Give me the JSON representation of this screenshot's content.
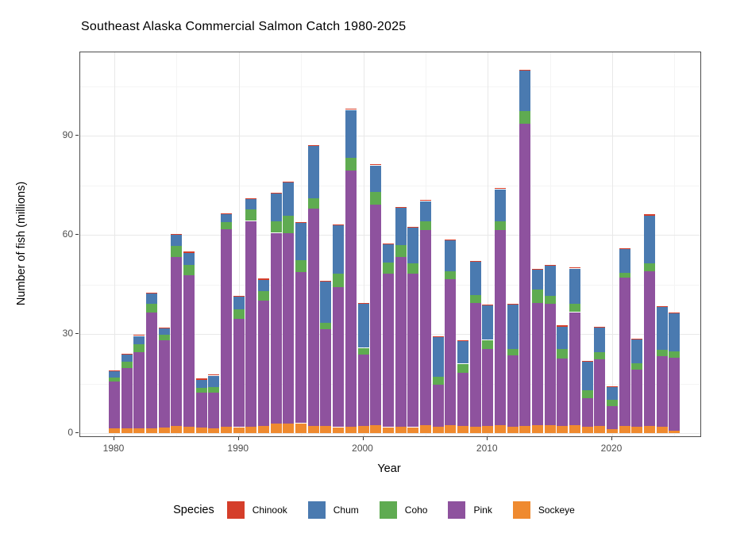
{
  "title": "Southeast Alaska Commercial Salmon Catch 1980-2025",
  "axes": {
    "x_label": "Year",
    "y_label": "Number of fish (millions)",
    "x_ticks": [
      1980,
      1990,
      2000,
      2010,
      2020
    ],
    "y_ticks": [
      0,
      30,
      60,
      90
    ],
    "y_minor_ticks": [
      15,
      45,
      75,
      105
    ],
    "x_minor_ticks": [
      1985,
      1995,
      2005,
      2015,
      2025
    ]
  },
  "legend": {
    "title": "Species",
    "items": [
      {
        "label": "Chinook",
        "color": "#d53e2a"
      },
      {
        "label": "Chum",
        "color": "#4a7ab0"
      },
      {
        "label": "Coho",
        "color": "#5fab51"
      },
      {
        "label": "Pink",
        "color": "#8e529e"
      },
      {
        "label": "Sockeye",
        "color": "#ef8a2f"
      }
    ]
  },
  "chart_data": {
    "type": "bar",
    "stacked": true,
    "title": "Southeast Alaska Commercial Salmon Catch 1980-2025",
    "xlabel": "Year",
    "ylabel": "Number of fish (millions)",
    "ylim": [
      0,
      115
    ],
    "grid": true,
    "legend_position": "bottom",
    "legend_order": [
      "Chinook",
      "Chum",
      "Coho",
      "Pink",
      "Sockeye"
    ],
    "x": [
      1980,
      1981,
      1982,
      1983,
      1984,
      1985,
      1986,
      1987,
      1988,
      1989,
      1990,
      1991,
      1992,
      1993,
      1994,
      1995,
      1996,
      1997,
      1998,
      1999,
      2000,
      2001,
      2002,
      2003,
      2004,
      2005,
      2006,
      2007,
      2008,
      2009,
      2010,
      2011,
      2012,
      2013,
      2014,
      2015,
      2016,
      2017,
      2018,
      2019,
      2020,
      2021,
      2022,
      2023,
      2024,
      2025
    ],
    "series": [
      {
        "name": "Sockeye",
        "color": "#ef8a2f",
        "values": [
          1.4,
          1.4,
          1.4,
          1.4,
          1.6,
          2.2,
          1.9,
          1.6,
          1.4,
          2.0,
          1.8,
          2.0,
          2.2,
          2.8,
          2.8,
          3.0,
          2.2,
          2.2,
          1.8,
          2.0,
          2.2,
          2.4,
          1.8,
          2.0,
          1.8,
          2.4,
          2.0,
          2.4,
          2.2,
          2.0,
          2.2,
          2.4,
          2.0,
          2.2,
          2.4,
          2.4,
          2.2,
          2.4,
          2.0,
          2.2,
          1.2,
          2.2,
          2.0,
          2.2,
          2.0,
          0.8
        ]
      },
      {
        "name": "Pink",
        "color": "#8e529e",
        "values": [
          14.2,
          18.4,
          23.0,
          35.0,
          26.4,
          51.0,
          45.9,
          10.6,
          10.8,
          59.6,
          32.8,
          62.2,
          37.8,
          57.8,
          57.6,
          45.8,
          65.8,
          29.2,
          42.4,
          77.5,
          21.6,
          66.8,
          46.4,
          51.4,
          46.4,
          59.0,
          12.6,
          44.2,
          16.0,
          37.4,
          23.2,
          59.0,
          21.6,
          91.3,
          37.0,
          36.7,
          20.4,
          34.2,
          8.6,
          20.1,
          7.0,
          44.9,
          17.1,
          46.8,
          21.4,
          22.0
        ]
      },
      {
        "name": "Coho",
        "color": "#5fab51",
        "values": [
          1.3,
          1.8,
          2.6,
          2.8,
          1.8,
          3.4,
          3.0,
          1.4,
          1.8,
          2.2,
          2.8,
          3.4,
          3.0,
          3.4,
          5.4,
          3.6,
          3.0,
          2.0,
          4.0,
          3.9,
          2.0,
          3.8,
          3.4,
          3.6,
          3.2,
          2.8,
          2.4,
          2.4,
          2.8,
          2.4,
          2.8,
          2.8,
          1.8,
          3.9,
          4.0,
          2.4,
          2.8,
          2.5,
          2.4,
          2.1,
          1.8,
          1.5,
          2.1,
          2.4,
          1.8,
          1.9
        ]
      },
      {
        "name": "Chum",
        "color": "#4a7ab0",
        "values": [
          1.8,
          2.2,
          2.4,
          3.0,
          2.0,
          3.3,
          3.8,
          2.6,
          3.4,
          2.4,
          4.0,
          3.2,
          3.4,
          8.4,
          10.1,
          11.2,
          15.8,
          12.4,
          14.6,
          14.4,
          13.4,
          8.0,
          5.6,
          11.1,
          10.8,
          6.0,
          12.0,
          9.4,
          7.0,
          10.0,
          10.6,
          9.6,
          13.6,
          12.2,
          6.2,
          9.1,
          6.8,
          10.7,
          8.5,
          7.6,
          4.0,
          7.2,
          7.2,
          14.4,
          13.0,
          11.5
        ]
      },
      {
        "name": "Chinook",
        "color": "#d53e2a",
        "values": [
          0.3,
          0.2,
          0.4,
          0.3,
          0.2,
          0.4,
          0.3,
          0.3,
          0.4,
          0.4,
          0.2,
          0.3,
          0.3,
          0.4,
          0.3,
          0.3,
          0.4,
          0.2,
          0.3,
          0.4,
          0.2,
          0.4,
          0.2,
          0.3,
          0.2,
          0.4,
          0.2,
          0.2,
          0.2,
          0.2,
          0.2,
          0.4,
          0.2,
          0.4,
          0.2,
          0.2,
          0.4,
          0.4,
          0.3,
          0.2,
          0.2,
          0.2,
          0.2,
          0.4,
          0.2,
          0.2
        ]
      }
    ]
  }
}
